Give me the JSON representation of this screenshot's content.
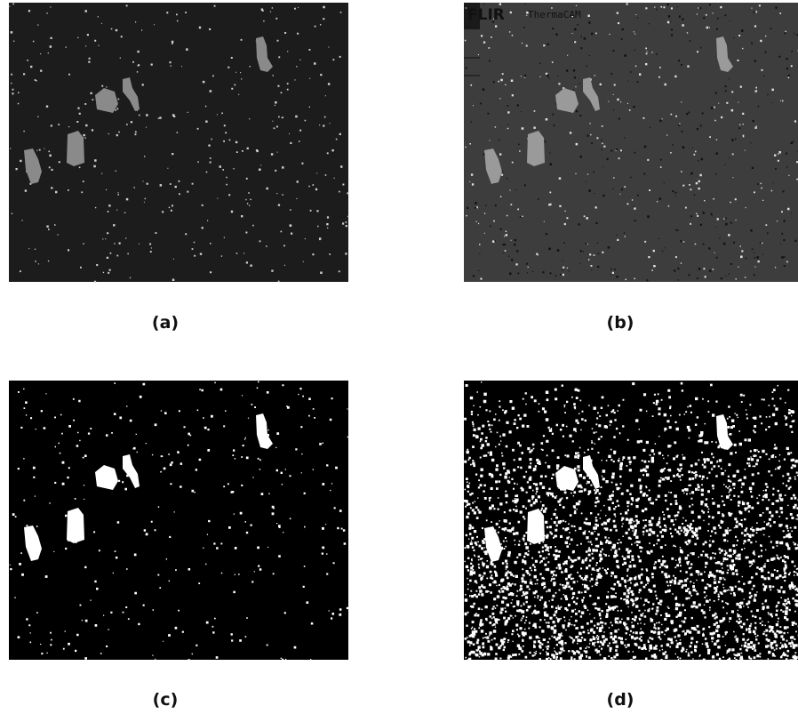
{
  "panels": [
    {
      "caption": "(a)"
    },
    {
      "caption": "(b)",
      "overlay_logo": "FLIR",
      "overlay_text": "ThermaCAM"
    },
    {
      "caption": "(c)"
    },
    {
      "caption": "(d)"
    }
  ]
}
